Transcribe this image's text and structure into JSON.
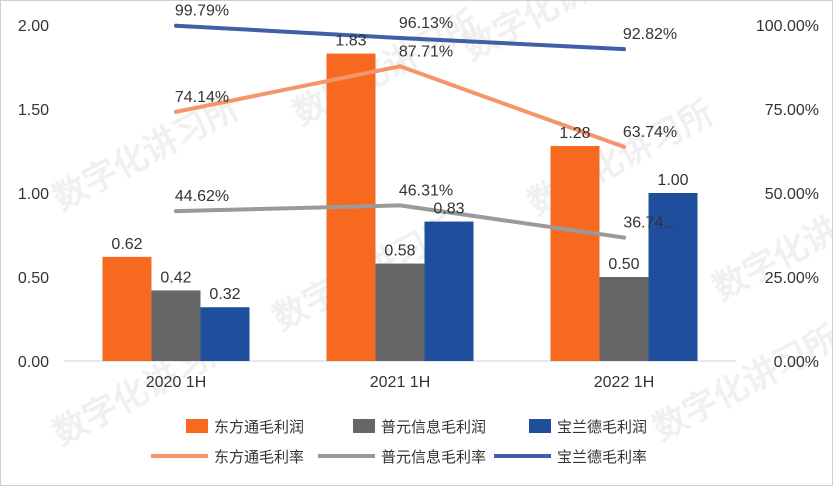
{
  "chart_data": {
    "type": "bar",
    "categories": [
      "2020 1H",
      "2021 1H",
      "2022 1H"
    ],
    "y_left": {
      "ylim": [
        0,
        2
      ],
      "ticks": [
        "0.00",
        "0.50",
        "1.00",
        "1.50",
        "2.00"
      ]
    },
    "y_right": {
      "ylim": [
        0,
        1
      ],
      "ticks": [
        "0.00%",
        "25.00%",
        "50.00%",
        "75.00%",
        "100.00%"
      ]
    },
    "bar_series": [
      {
        "name": "东方通毛利润",
        "color": "#f7691f",
        "values": [
          0.62,
          1.83,
          1.28
        ],
        "labels": [
          "0.62",
          "1.83",
          "1.28"
        ]
      },
      {
        "name": "普元信息毛利润",
        "color": "#666666",
        "values": [
          0.42,
          0.58,
          0.5
        ],
        "labels": [
          "0.42",
          "0.58",
          "0.50"
        ]
      },
      {
        "name": "宝兰德毛利润",
        "color": "#1f4e9c",
        "values": [
          0.32,
          0.83,
          1.0
        ],
        "labels": [
          "0.32",
          "0.83",
          "1.00"
        ]
      }
    ],
    "line_series": [
      {
        "name": "东方通毛利率",
        "color": "#f4956a",
        "values": [
          0.7414,
          0.8771,
          0.6374
        ],
        "labels": [
          "74.14%",
          "87.71%",
          "63.74%"
        ]
      },
      {
        "name": "普元信息毛利率",
        "color": "#9a9a9a",
        "values": [
          0.4462,
          0.4631,
          0.3674
        ],
        "labels": [
          "44.62%",
          "46.31%",
          "36.74..."
        ]
      },
      {
        "name": "宝兰德毛利率",
        "color": "#3f5fa8",
        "values": [
          0.9979,
          0.9613,
          0.9282
        ],
        "labels": [
          "99.79%",
          "96.13%",
          "92.82%"
        ]
      }
    ],
    "legend_position": "bottom",
    "grid": false
  },
  "watermark": "数字化讲习所"
}
